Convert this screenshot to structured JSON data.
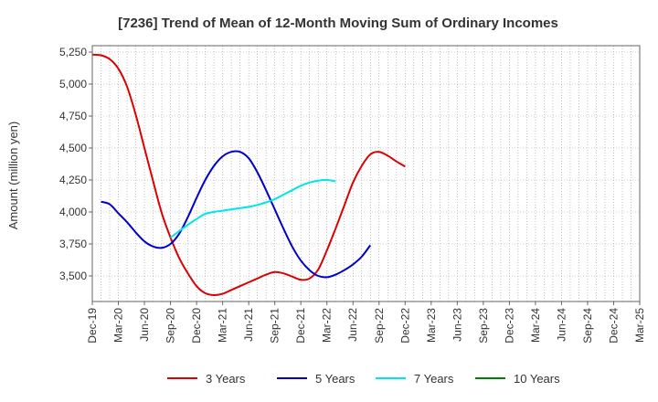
{
  "chart_data": {
    "type": "line",
    "title": "[7236]  Trend of Mean of 12-Month Moving Sum of Ordinary Incomes",
    "xlabel": "",
    "ylabel": "Amount (million yen)",
    "ylim": [
      3300,
      5300
    ],
    "yticks": [
      3500,
      3750,
      4000,
      4250,
      4500,
      4750,
      5000,
      5250
    ],
    "ytick_labels": [
      "3,500",
      "3,750",
      "4,000",
      "4,250",
      "4,500",
      "4,750",
      "5,000",
      "5,250"
    ],
    "xticks": [
      "Dec-19",
      "Mar-20",
      "Jun-20",
      "Sep-20",
      "Dec-20",
      "Mar-21",
      "Jun-21",
      "Sep-21",
      "Dec-21",
      "Mar-22",
      "Jun-22",
      "Sep-22",
      "Dec-22",
      "Mar-23",
      "Jun-23",
      "Sep-23",
      "Dec-23",
      "Mar-24",
      "Jun-24",
      "Sep-24",
      "Dec-24",
      "Mar-25"
    ],
    "grid": true,
    "legend_position": "bottom",
    "series": [
      {
        "name": "3 Years",
        "color": "#dd0000",
        "start_month_index": 0,
        "values": [
          5230,
          5225,
          5195,
          5120,
          4980,
          4760,
          4500,
          4240,
          3990,
          3800,
          3640,
          3520,
          3420,
          3365,
          3350,
          3360,
          3390,
          3420,
          3450,
          3480,
          3510,
          3530,
          3520,
          3495,
          3470,
          3480,
          3550,
          3700,
          3870,
          4050,
          4230,
          4360,
          4450,
          4470,
          4440,
          4395,
          4355
        ]
      },
      {
        "name": "5 Years",
        "color": "#0000cc",
        "start_month_index": 1,
        "values": [
          4080,
          4060,
          3990,
          3920,
          3840,
          3770,
          3730,
          3720,
          3750,
          3830,
          3960,
          4110,
          4250,
          4360,
          4435,
          4470,
          4470,
          4420,
          4310,
          4170,
          4020,
          3870,
          3730,
          3620,
          3545,
          3500,
          3490,
          3510,
          3545,
          3590,
          3650,
          3740
        ]
      },
      {
        "name": "7 Years",
        "color": "#00e5e5",
        "start_month_index": 9,
        "values": [
          3800,
          3850,
          3900,
          3945,
          3985,
          4000,
          4010,
          4020,
          4030,
          4040,
          4055,
          4075,
          4100,
          4135,
          4170,
          4205,
          4230,
          4245,
          4250,
          4240
        ]
      },
      {
        "name": "10 Years",
        "color": "#008000",
        "start_month_index": 0,
        "values": []
      }
    ]
  }
}
